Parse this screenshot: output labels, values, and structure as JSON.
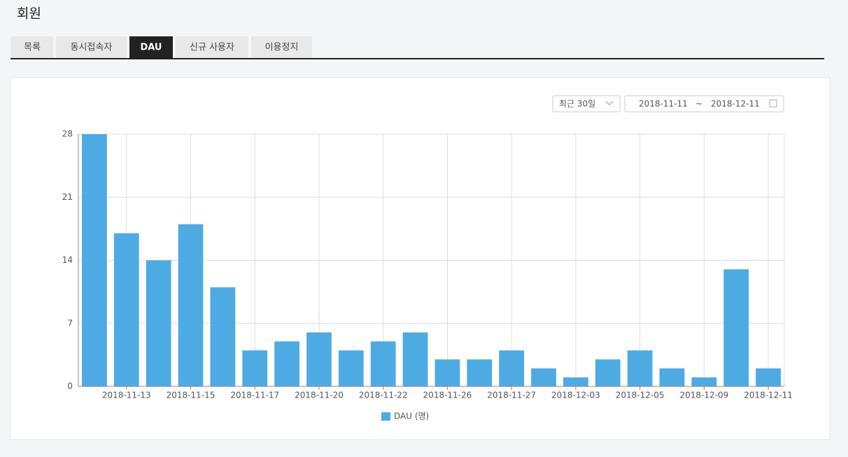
{
  "header": {
    "title": "회원"
  },
  "tabs": [
    "목록",
    "동시접속자",
    "DAU",
    "신규 사용자",
    "이용정지"
  ],
  "filters": {
    "period": "최근 30일",
    "start": "2018-11-11",
    "separator": "~",
    "end": "2018-12-11"
  },
  "chart_data": {
    "type": "bar",
    "categories": [
      null,
      "2018-11-13",
      null,
      "2018-11-15",
      null,
      "2018-11-17",
      null,
      "2018-11-20",
      null,
      "2018-11-22",
      null,
      "2018-11-26",
      null,
      "2018-11-27",
      null,
      "2018-12-03",
      null,
      "2018-12-05",
      null,
      "2018-12-09",
      null,
      "2018-12-11"
    ],
    "series": [
      {
        "name": "DAU (명)",
        "color": "#4eaae3",
        "values": [
          28,
          17,
          14,
          18,
          11,
          4,
          5,
          6,
          4,
          5,
          6,
          3,
          3,
          4,
          2,
          1,
          3,
          4,
          2,
          1,
          13,
          2
        ]
      }
    ],
    "ylim": [
      0,
      28
    ],
    "yticks": [
      0,
      7,
      14,
      21,
      28
    ],
    "grid": true
  }
}
